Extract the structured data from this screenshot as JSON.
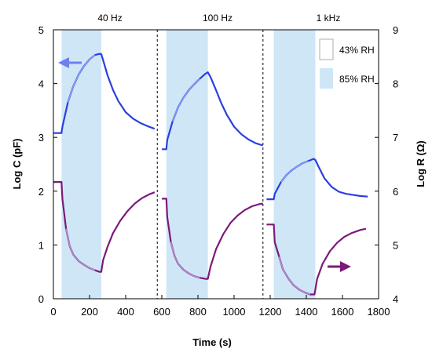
{
  "chart_data": {
    "type": "line",
    "xlabel": "Time (s)",
    "ylabel_left": "Log C (pF)",
    "ylabel_right": "Log R (Ω)",
    "xlim": [
      0,
      1800
    ],
    "ylim_left": [
      0,
      5
    ],
    "ylim_right": [
      4,
      9
    ],
    "x_ticks": [
      "0",
      "200",
      "400",
      "600",
      "800",
      "1000",
      "1200",
      "1400",
      "1600",
      "1800"
    ],
    "y_left_ticks": [
      "0",
      "1",
      "2",
      "3",
      "4",
      "5"
    ],
    "y_right_ticks": [
      "4",
      "5",
      "6",
      "7",
      "8",
      "9"
    ],
    "panels": [
      {
        "label": "40 Hz",
        "x_start": 0,
        "x_end": 575,
        "rh85_start": 45,
        "rh85_end": 265
      },
      {
        "label": "100 Hz",
        "x_start": 575,
        "x_end": 1160,
        "rh85_start": 625,
        "rh85_end": 855
      },
      {
        "label": "1 kHz",
        "x_start": 1160,
        "x_end": 1800,
        "rh85_start": 1220,
        "rh85_end": 1450
      }
    ],
    "legend": [
      {
        "label": "43% RH",
        "fill": "#ffffff"
      },
      {
        "label": "85% RH",
        "fill": "#cfe6f7"
      }
    ],
    "series": [
      {
        "axis": "left",
        "color": "#2b3fe0",
        "color_light": "#8fa8f0",
        "segments": [
          {
            "x": [
              0,
              45,
              50,
              80,
              110,
              140,
              170,
              200,
              230,
              250,
              265,
              280,
              300,
              330,
              360,
              400,
              440,
              480,
              520,
              560
            ],
            "y": [
              3.08,
              3.08,
              3.2,
              3.65,
              3.95,
              4.17,
              4.33,
              4.45,
              4.53,
              4.55,
              4.55,
              4.38,
              4.15,
              3.88,
              3.67,
              3.47,
              3.35,
              3.27,
              3.21,
              3.16
            ]
          },
          {
            "x": [
              600,
              625,
              630,
              660,
              690,
              720,
              750,
              780,
              810,
              840,
              855,
              870,
              900,
              930,
              960,
              1000,
              1040,
              1080,
              1120,
              1160
            ],
            "y": [
              2.78,
              2.78,
              2.95,
              3.3,
              3.56,
              3.74,
              3.88,
              3.99,
              4.09,
              4.18,
              4.21,
              4.12,
              3.88,
              3.63,
              3.42,
              3.2,
              3.06,
              2.96,
              2.89,
              2.85
            ]
          },
          {
            "x": [
              1180,
              1220,
              1225,
              1260,
              1290,
              1320,
              1350,
              1380,
              1410,
              1440,
              1450,
              1470,
              1500,
              1540,
              1580,
              1620,
              1660,
              1700,
              1740
            ],
            "y": [
              1.85,
              1.85,
              1.95,
              2.17,
              2.3,
              2.39,
              2.46,
              2.52,
              2.56,
              2.6,
              2.58,
              2.44,
              2.24,
              2.08,
              1.99,
              1.95,
              1.93,
              1.91,
              1.9
            ]
          }
        ]
      },
      {
        "axis": "right",
        "color": "#7a1a7a",
        "color_light": "#b79bd4",
        "segments": [
          {
            "x": [
              0,
              45,
              50,
              70,
              90,
              110,
              140,
              170,
              200,
              230,
              255,
              265,
              275,
              300,
              330,
              370,
              410,
              450,
              490,
              530,
              560
            ],
            "y": [
              6.17,
              6.17,
              5.85,
              5.3,
              4.98,
              4.82,
              4.7,
              4.63,
              4.57,
              4.53,
              4.5,
              4.5,
              4.72,
              4.97,
              5.22,
              5.45,
              5.63,
              5.77,
              5.87,
              5.94,
              5.98
            ]
          },
          {
            "x": [
              600,
              625,
              630,
              650,
              670,
              690,
              720,
              750,
              780,
              810,
              840,
              855,
              870,
              900,
              940,
              980,
              1020,
              1060,
              1100,
              1140,
              1160
            ],
            "y": [
              5.86,
              5.86,
              5.52,
              5.06,
              4.8,
              4.65,
              4.54,
              4.47,
              4.42,
              4.39,
              4.37,
              4.37,
              4.6,
              4.92,
              5.2,
              5.41,
              5.55,
              5.65,
              5.72,
              5.76,
              5.77
            ]
          },
          {
            "x": [
              1180,
              1220,
              1225,
              1250,
              1270,
              1300,
              1330,
              1360,
              1390,
              1420,
              1440,
              1445,
              1460,
              1490,
              1530,
              1570,
              1610,
              1650,
              1700,
              1730
            ],
            "y": [
              5.38,
              5.38,
              5.05,
              4.78,
              4.55,
              4.38,
              4.25,
              4.17,
              4.12,
              4.08,
              4.08,
              4.08,
              4.37,
              4.65,
              4.88,
              5.04,
              5.15,
              5.22,
              5.28,
              5.3
            ]
          }
        ]
      }
    ]
  }
}
